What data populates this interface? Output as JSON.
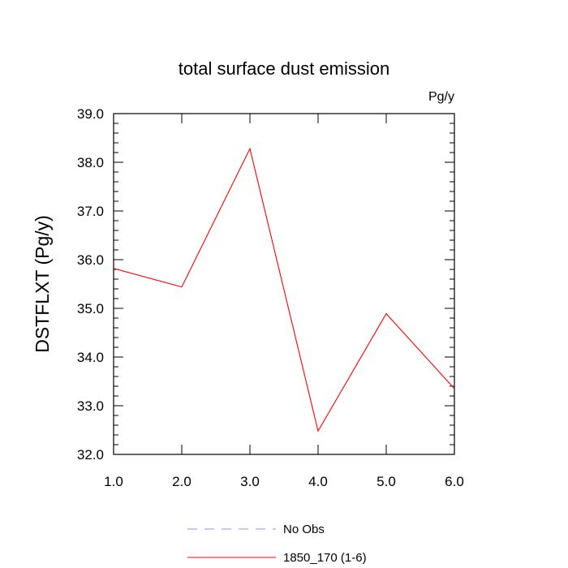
{
  "chart_data": {
    "type": "line",
    "title": "total surface dust emission",
    "units_label": "Pg/y",
    "xlabel": "",
    "ylabel": "DSTFLXT  (Pg/y)",
    "xlim": [
      1.0,
      6.0
    ],
    "ylim": [
      32.0,
      39.0
    ],
    "x_ticks": [
      "1.0",
      "2.0",
      "3.0",
      "4.0",
      "5.0",
      "6.0"
    ],
    "y_ticks": [
      "32.0",
      "33.0",
      "34.0",
      "35.0",
      "36.0",
      "37.0",
      "38.0",
      "39.0"
    ],
    "x": [
      1,
      2,
      3,
      4,
      5,
      6
    ],
    "series": [
      {
        "name": "1850_170 (1-6)",
        "values": [
          35.82,
          35.44,
          38.28,
          32.48,
          34.89,
          33.35
        ],
        "color": "#ff0000"
      }
    ],
    "legend": {
      "placement": "bottom-center",
      "entries": [
        {
          "label": "No Obs",
          "color": "#8f8fff",
          "style": "dashed"
        },
        {
          "label": "1850_170 (1-6)",
          "color": "#ff0000",
          "style": "solid"
        }
      ]
    },
    "grid": false
  }
}
